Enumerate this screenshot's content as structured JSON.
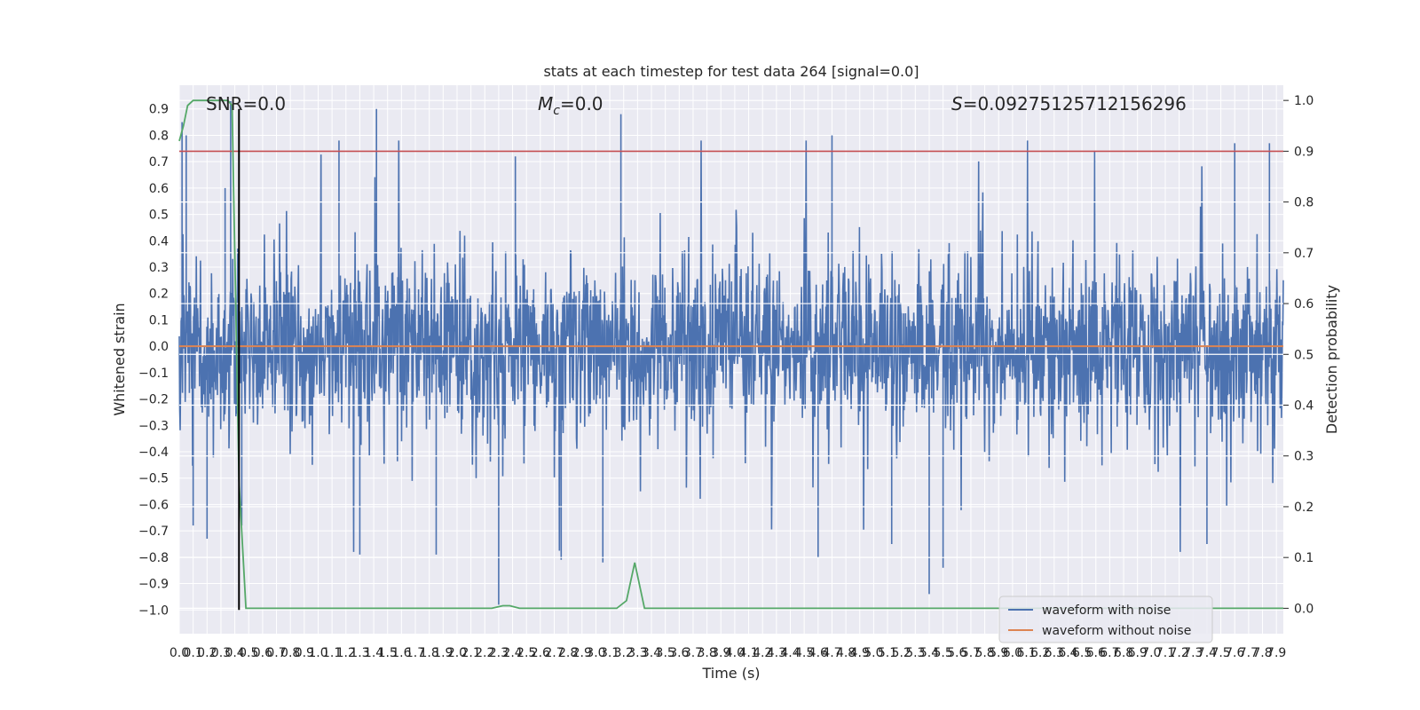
{
  "chart_data": {
    "type": "line",
    "title": "stats at each timestep for test data 264 [signal=0.0]",
    "xlabel": "Time (s)",
    "ylabel": "Whitened strain",
    "y2label": "Detection probability",
    "xlim": [
      0.0,
      7.95
    ],
    "ylim": [
      -1.09,
      0.99
    ],
    "y2lim": [
      -0.05,
      1.03
    ],
    "grid": true,
    "legend_position": "lower-right",
    "annotations": {
      "snr": "SNR=0.0",
      "mc_symbol": "M",
      "mc_sub": "c",
      "mc_value": "=0.0",
      "s_symbol": "S",
      "s_value": "=0.09275125712156296"
    },
    "x_ticks": [
      0.0,
      0.1,
      0.2,
      0.3,
      0.4,
      0.5,
      0.6,
      0.7,
      0.8,
      0.9,
      1.0,
      1.1,
      1.2,
      1.3,
      1.4,
      1.5,
      1.6,
      1.7,
      1.8,
      1.9,
      2.0,
      2.1,
      2.2,
      2.3,
      2.4,
      2.5,
      2.6,
      2.7,
      2.8,
      2.9,
      3.0,
      3.1,
      3.2,
      3.3,
      3.4,
      3.5,
      3.6,
      3.7,
      3.8,
      3.9,
      4.0,
      4.1,
      4.2,
      4.3,
      4.4,
      4.5,
      4.6,
      4.7,
      4.8,
      4.9,
      5.0,
      5.1,
      5.2,
      5.3,
      5.4,
      5.5,
      5.6,
      5.7,
      5.8,
      5.9,
      6.0,
      6.1,
      6.2,
      6.3,
      6.4,
      6.5,
      6.6,
      6.7,
      6.8,
      6.9,
      7.0,
      7.1,
      7.2,
      7.3,
      7.4,
      7.5,
      7.6,
      7.7,
      7.8,
      7.9
    ],
    "x_tick_labels": [
      "0.0",
      "0.1",
      "0.2",
      "0.3",
      "0.4",
      "0.5",
      "0.6",
      "0.7",
      "0.8",
      "0.9",
      "1.0",
      "1.1",
      "1.2",
      "1.3",
      "1.4",
      "1.5",
      "1.6",
      "1.7",
      "1.8",
      "1.9",
      "2.0",
      "2.1",
      "2.2",
      "2.3",
      "2.4",
      "2.5",
      "2.6",
      "2.7",
      "2.8",
      "2.9",
      "3.0",
      "3.1",
      "3.2",
      "3.3",
      "3.4",
      "3.5",
      "3.6",
      "3.7",
      "3.8",
      "3.9",
      "4.0",
      "4.1",
      "4.2",
      "4.3",
      "4.4",
      "4.5",
      "4.6",
      "4.7",
      "4.8",
      "4.9",
      "5.0",
      "5.1",
      "5.2",
      "5.3",
      "5.4",
      "5.5",
      "5.6",
      "5.7",
      "5.8",
      "5.9",
      "6.0",
      "6.1",
      "6.2",
      "6.3",
      "6.4",
      "6.5",
      "6.6",
      "6.7",
      "6.8",
      "6.9",
      "7.0",
      "7.1",
      "7.2",
      "7.3",
      "7.4",
      "7.5",
      "7.6",
      "7.7",
      "7.8",
      "7.9"
    ],
    "y_ticks": [
      0.9,
      0.8,
      0.7,
      0.6,
      0.5,
      0.4,
      0.3,
      0.2,
      0.1,
      0.0,
      -0.1,
      -0.2,
      -0.3,
      -0.4,
      -0.5,
      -0.6,
      -0.7,
      -0.8,
      -0.9,
      -1.0
    ],
    "y_tick_labels": [
      "0.9",
      "0.8",
      "0.7",
      "0.6",
      "0.5",
      "0.4",
      "0.3",
      "0.2",
      "0.1",
      "0.0",
      "−0.1",
      "−0.2",
      "−0.3",
      "−0.4",
      "−0.5",
      "−0.6",
      "−0.7",
      "−0.8",
      "−0.9",
      "−1.0"
    ],
    "y2_ticks": [
      1.0,
      0.9,
      0.8,
      0.7,
      0.6,
      0.5,
      0.4,
      0.3,
      0.2,
      0.1,
      0.0
    ],
    "y2_tick_labels": [
      "1.0",
      "0.9",
      "0.8",
      "0.7",
      "0.6",
      "0.5",
      "0.4",
      "0.3",
      "0.2",
      "0.1",
      "0.0"
    ],
    "series": [
      {
        "name": "waveform with noise",
        "color": "#4c72b0",
        "axis": "left",
        "description_values": "dense noise, roughly within [-0.8, 0.9]",
        "spikes": [
          {
            "x": 0.02,
            "y": 0.85
          },
          {
            "x": 0.05,
            "y": 0.8
          },
          {
            "x": 0.1,
            "y": -0.68
          },
          {
            "x": 0.2,
            "y": -0.73
          },
          {
            "x": 0.33,
            "y": 0.6
          },
          {
            "x": 0.37,
            "y": 0.93
          },
          {
            "x": 0.45,
            "y": -0.68
          },
          {
            "x": 1.15,
            "y": 0.78
          },
          {
            "x": 1.3,
            "y": -0.79
          },
          {
            "x": 1.42,
            "y": 0.9
          },
          {
            "x": 1.85,
            "y": -0.79
          },
          {
            "x": 2.3,
            "y": -0.98
          },
          {
            "x": 2.42,
            "y": 0.72
          },
          {
            "x": 2.75,
            "y": -0.81
          },
          {
            "x": 3.05,
            "y": -0.82
          },
          {
            "x": 3.18,
            "y": 0.88
          },
          {
            "x": 4.6,
            "y": -0.8
          },
          {
            "x": 4.7,
            "y": 0.8
          },
          {
            "x": 5.13,
            "y": -0.75
          },
          {
            "x": 5.4,
            "y": -0.94
          },
          {
            "x": 5.5,
            "y": -0.84
          },
          {
            "x": 7.4,
            "y": -0.75
          },
          {
            "x": 7.6,
            "y": 0.77
          },
          {
            "x": 7.85,
            "y": 0.77
          }
        ]
      },
      {
        "name": "waveform without noise",
        "color": "#dd8452",
        "axis": "left",
        "x": [
          0.0,
          7.95
        ],
        "y": [
          0.0,
          0.0
        ]
      },
      {
        "color": "#55a868",
        "axis": "right",
        "x": [
          0.0,
          0.03,
          0.06,
          0.1,
          0.2,
          0.3,
          0.35,
          0.38,
          0.43,
          0.48,
          2.25,
          2.33,
          2.38,
          2.45,
          3.15,
          3.22,
          3.28,
          3.35,
          3.42,
          4.1,
          4.2,
          5.2,
          5.3,
          7.95
        ],
        "y": [
          0.92,
          0.95,
          0.99,
          1.0,
          1.0,
          1.0,
          1.0,
          0.99,
          0.25,
          0.0,
          0.0,
          0.005,
          0.005,
          0.0,
          0.0,
          0.015,
          0.09,
          0.0,
          0.0,
          0.0,
          0.0,
          0.0,
          0.0,
          0.0
        ]
      },
      {
        "color": "#c44e52",
        "axis": "right",
        "x": [
          0.0,
          7.95
        ],
        "y": [
          0.9,
          0.9
        ]
      }
    ],
    "vertical_marker": {
      "x": 0.43,
      "y_from": -1.0,
      "y_to": 0.9,
      "color": "#000000"
    }
  }
}
